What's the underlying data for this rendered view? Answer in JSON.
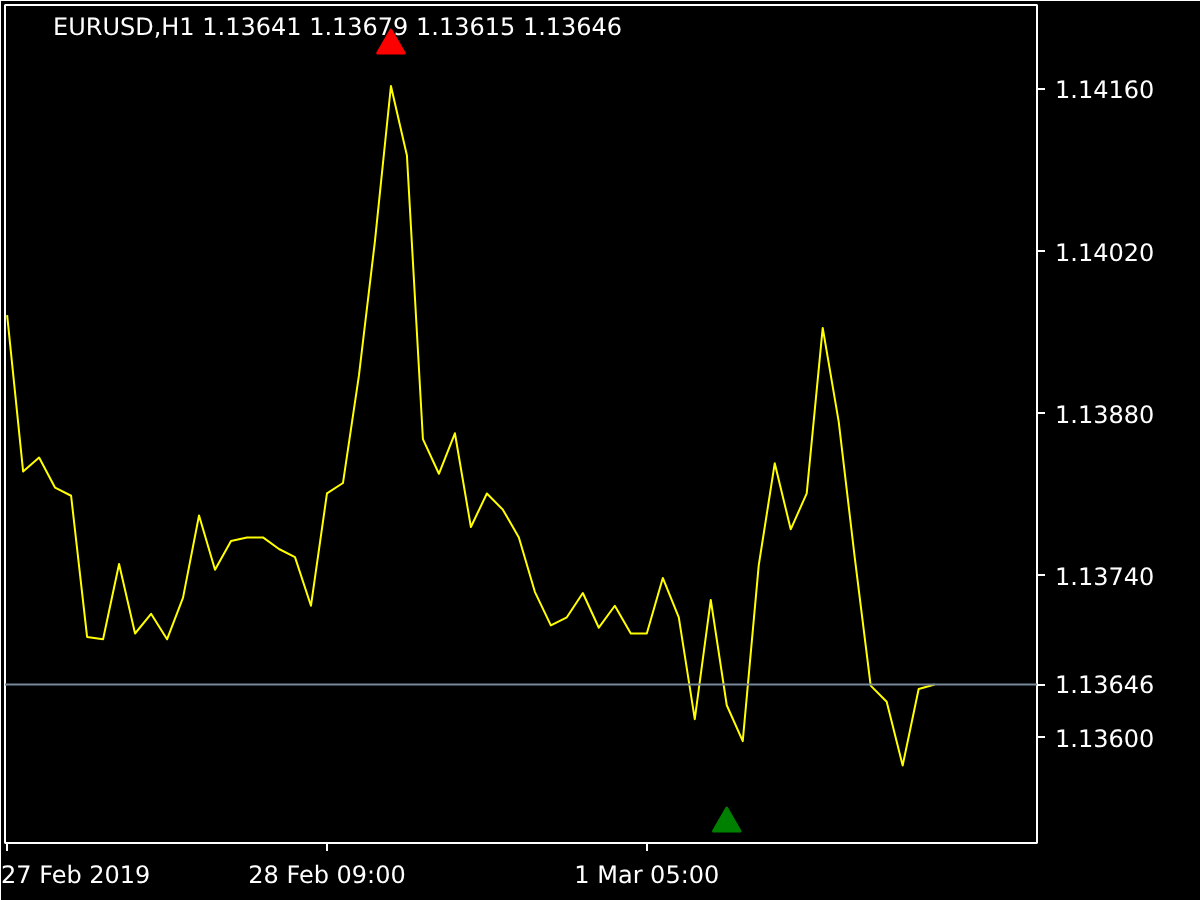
{
  "chart_data": {
    "type": "line",
    "title": "EURUSD,H1  1.13641 1.13679 1.13615 1.13646",
    "x": [
      "2019-02-27T13:00",
      "2019-02-27T14:00",
      "2019-02-27T15:00",
      "2019-02-27T16:00",
      "2019-02-27T17:00",
      "2019-02-27T18:00",
      "2019-02-27T19:00",
      "2019-02-27T20:00",
      "2019-02-27T21:00",
      "2019-02-27T22:00",
      "2019-02-27T23:00",
      "2019-02-28T00:00",
      "2019-02-28T01:00",
      "2019-02-28T02:00",
      "2019-02-28T03:00",
      "2019-02-28T04:00",
      "2019-02-28T05:00",
      "2019-02-28T06:00",
      "2019-02-28T07:00",
      "2019-02-28T08:00",
      "2019-02-28T09:00",
      "2019-02-28T10:00",
      "2019-02-28T11:00",
      "2019-02-28T12:00",
      "2019-02-28T13:00",
      "2019-02-28T14:00",
      "2019-02-28T15:00",
      "2019-02-28T16:00",
      "2019-02-28T17:00",
      "2019-02-28T18:00",
      "2019-02-28T19:00",
      "2019-02-28T20:00",
      "2019-02-28T21:00",
      "2019-02-28T22:00",
      "2019-02-28T23:00",
      "2019-03-01T00:00",
      "2019-03-01T01:00",
      "2019-03-01T02:00",
      "2019-03-01T03:00",
      "2019-03-01T04:00",
      "2019-03-01T05:00",
      "2019-03-01T06:00",
      "2019-03-01T07:00",
      "2019-03-01T08:00",
      "2019-03-01T09:00",
      "2019-03-01T10:00",
      "2019-03-01T11:00",
      "2019-03-01T12:00",
      "2019-03-01T13:00",
      "2019-03-01T14:00",
      "2019-03-01T15:00",
      "2019-03-01T16:00",
      "2019-03-01T17:00",
      "2019-03-01T18:00",
      "2019-03-01T19:00",
      "2019-03-01T20:00",
      "2019-03-01T21:00",
      "2019-03-01T22:00",
      "2019-03-01T23:00"
    ],
    "series": [
      {
        "color": "#ffff00",
        "values": [
          1.13965,
          1.1383,
          1.13842,
          1.13816,
          1.13809,
          1.13687,
          1.13685,
          1.1375,
          1.1369,
          1.13707,
          1.13685,
          1.13721,
          1.13792,
          1.13745,
          1.1377,
          1.13773,
          1.13773,
          1.13763,
          1.13756,
          1.13714,
          1.13811,
          1.1382,
          1.13913,
          1.14029,
          1.14163,
          1.14103,
          1.13858,
          1.13828,
          1.13863,
          1.13782,
          1.13811,
          1.13797,
          1.13773,
          1.13726,
          1.13697,
          1.13704,
          1.13725,
          1.13695,
          1.13714,
          1.1369,
          1.1369,
          1.13738,
          1.13704,
          1.13616,
          1.13719,
          1.13628,
          1.13597,
          1.13749,
          1.13837,
          1.1378,
          1.13811,
          1.13954,
          1.13873,
          1.13756,
          1.13645,
          1.13631,
          1.13576,
          1.13642,
          1.13646
        ]
      },
      {
        "type": "scatter",
        "marker": "triangle",
        "color": "#ff0000",
        "x": [
          "2019-02-28T13:00"
        ],
        "values": [
          1.14198
        ]
      },
      {
        "type": "scatter",
        "marker": "triangle",
        "color": "#008000",
        "x": [
          "2019-03-01T10:00"
        ],
        "values": [
          1.13526
        ]
      }
    ],
    "xlim": [
      "2019-02-27T12:52",
      "2019-03-02T05:24"
    ],
    "ylim": [
      1.13509,
      1.14233
    ],
    "xticks": [
      {
        "value": "2019-02-27T13:00",
        "label": "27 Feb 2019"
      },
      {
        "value": "2019-02-28T09:00",
        "label": "28 Feb 09:00"
      },
      {
        "value": "2019-03-01T05:00",
        "label": "1 Mar 05:00"
      }
    ],
    "yticks": [
      {
        "value": 1.136,
        "label": "1.13600"
      },
      {
        "value": 1.1374,
        "label": "1.13740"
      },
      {
        "value": 1.1388,
        "label": "1.13880"
      },
      {
        "value": 1.1402,
        "label": "1.14020"
      },
      {
        "value": 1.1416,
        "label": "1.14160"
      }
    ],
    "ref_lines": [
      {
        "axis": "y",
        "value": 1.13646,
        "label": "1.13646",
        "color": "#778899"
      }
    ],
    "grid": false
  }
}
